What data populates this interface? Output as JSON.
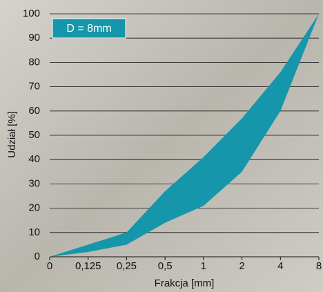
{
  "chart_data": {
    "type": "band",
    "annotation": "D = 8mm",
    "x_label": "Frakcja [mm]",
    "y_label": "Udział [%]",
    "categories": [
      "0",
      "0,125",
      "0,25",
      "0,5",
      "1",
      "2",
      "4",
      "8"
    ],
    "series": [
      {
        "color": "#1596aa",
        "values": [
          0,
          5,
          10,
          27,
          41,
          57,
          76,
          100
        ]
      },
      {
        "color": "#1596aa",
        "values": [
          0,
          2,
          5,
          14,
          21,
          35,
          60,
          100
        ]
      }
    ],
    "ylim": [
      0,
      100
    ],
    "yticks": [
      0,
      10,
      20,
      30,
      40,
      50,
      60,
      70,
      80,
      90,
      100
    ],
    "grid": true
  }
}
